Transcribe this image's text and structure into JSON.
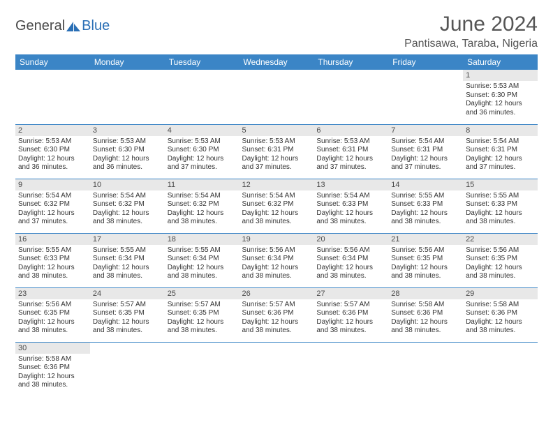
{
  "logo": {
    "part1": "General",
    "part2": "Blue"
  },
  "title": "June 2024",
  "location": "Pantisawa, Taraba, Nigeria",
  "colors": {
    "header_bg": "#3b85c6",
    "header_fg": "#ffffff",
    "daynum_bg": "#e8e8e8",
    "border": "#3b85c6",
    "logo_blue": "#2a6fb5",
    "logo_gray": "#4a4a4a"
  },
  "weekdays": [
    "Sunday",
    "Monday",
    "Tuesday",
    "Wednesday",
    "Thursday",
    "Friday",
    "Saturday"
  ],
  "weeks": [
    [
      null,
      null,
      null,
      null,
      null,
      null,
      {
        "n": "1",
        "sr": "Sunrise: 5:53 AM",
        "ss": "Sunset: 6:30 PM",
        "d1": "Daylight: 12 hours",
        "d2": "and 36 minutes."
      }
    ],
    [
      {
        "n": "2",
        "sr": "Sunrise: 5:53 AM",
        "ss": "Sunset: 6:30 PM",
        "d1": "Daylight: 12 hours",
        "d2": "and 36 minutes."
      },
      {
        "n": "3",
        "sr": "Sunrise: 5:53 AM",
        "ss": "Sunset: 6:30 PM",
        "d1": "Daylight: 12 hours",
        "d2": "and 36 minutes."
      },
      {
        "n": "4",
        "sr": "Sunrise: 5:53 AM",
        "ss": "Sunset: 6:30 PM",
        "d1": "Daylight: 12 hours",
        "d2": "and 37 minutes."
      },
      {
        "n": "5",
        "sr": "Sunrise: 5:53 AM",
        "ss": "Sunset: 6:31 PM",
        "d1": "Daylight: 12 hours",
        "d2": "and 37 minutes."
      },
      {
        "n": "6",
        "sr": "Sunrise: 5:53 AM",
        "ss": "Sunset: 6:31 PM",
        "d1": "Daylight: 12 hours",
        "d2": "and 37 minutes."
      },
      {
        "n": "7",
        "sr": "Sunrise: 5:54 AM",
        "ss": "Sunset: 6:31 PM",
        "d1": "Daylight: 12 hours",
        "d2": "and 37 minutes."
      },
      {
        "n": "8",
        "sr": "Sunrise: 5:54 AM",
        "ss": "Sunset: 6:31 PM",
        "d1": "Daylight: 12 hours",
        "d2": "and 37 minutes."
      }
    ],
    [
      {
        "n": "9",
        "sr": "Sunrise: 5:54 AM",
        "ss": "Sunset: 6:32 PM",
        "d1": "Daylight: 12 hours",
        "d2": "and 37 minutes."
      },
      {
        "n": "10",
        "sr": "Sunrise: 5:54 AM",
        "ss": "Sunset: 6:32 PM",
        "d1": "Daylight: 12 hours",
        "d2": "and 38 minutes."
      },
      {
        "n": "11",
        "sr": "Sunrise: 5:54 AM",
        "ss": "Sunset: 6:32 PM",
        "d1": "Daylight: 12 hours",
        "d2": "and 38 minutes."
      },
      {
        "n": "12",
        "sr": "Sunrise: 5:54 AM",
        "ss": "Sunset: 6:32 PM",
        "d1": "Daylight: 12 hours",
        "d2": "and 38 minutes."
      },
      {
        "n": "13",
        "sr": "Sunrise: 5:54 AM",
        "ss": "Sunset: 6:33 PM",
        "d1": "Daylight: 12 hours",
        "d2": "and 38 minutes."
      },
      {
        "n": "14",
        "sr": "Sunrise: 5:55 AM",
        "ss": "Sunset: 6:33 PM",
        "d1": "Daylight: 12 hours",
        "d2": "and 38 minutes."
      },
      {
        "n": "15",
        "sr": "Sunrise: 5:55 AM",
        "ss": "Sunset: 6:33 PM",
        "d1": "Daylight: 12 hours",
        "d2": "and 38 minutes."
      }
    ],
    [
      {
        "n": "16",
        "sr": "Sunrise: 5:55 AM",
        "ss": "Sunset: 6:33 PM",
        "d1": "Daylight: 12 hours",
        "d2": "and 38 minutes."
      },
      {
        "n": "17",
        "sr": "Sunrise: 5:55 AM",
        "ss": "Sunset: 6:34 PM",
        "d1": "Daylight: 12 hours",
        "d2": "and 38 minutes."
      },
      {
        "n": "18",
        "sr": "Sunrise: 5:55 AM",
        "ss": "Sunset: 6:34 PM",
        "d1": "Daylight: 12 hours",
        "d2": "and 38 minutes."
      },
      {
        "n": "19",
        "sr": "Sunrise: 5:56 AM",
        "ss": "Sunset: 6:34 PM",
        "d1": "Daylight: 12 hours",
        "d2": "and 38 minutes."
      },
      {
        "n": "20",
        "sr": "Sunrise: 5:56 AM",
        "ss": "Sunset: 6:34 PM",
        "d1": "Daylight: 12 hours",
        "d2": "and 38 minutes."
      },
      {
        "n": "21",
        "sr": "Sunrise: 5:56 AM",
        "ss": "Sunset: 6:35 PM",
        "d1": "Daylight: 12 hours",
        "d2": "and 38 minutes."
      },
      {
        "n": "22",
        "sr": "Sunrise: 5:56 AM",
        "ss": "Sunset: 6:35 PM",
        "d1": "Daylight: 12 hours",
        "d2": "and 38 minutes."
      }
    ],
    [
      {
        "n": "23",
        "sr": "Sunrise: 5:56 AM",
        "ss": "Sunset: 6:35 PM",
        "d1": "Daylight: 12 hours",
        "d2": "and 38 minutes."
      },
      {
        "n": "24",
        "sr": "Sunrise: 5:57 AM",
        "ss": "Sunset: 6:35 PM",
        "d1": "Daylight: 12 hours",
        "d2": "and 38 minutes."
      },
      {
        "n": "25",
        "sr": "Sunrise: 5:57 AM",
        "ss": "Sunset: 6:35 PM",
        "d1": "Daylight: 12 hours",
        "d2": "and 38 minutes."
      },
      {
        "n": "26",
        "sr": "Sunrise: 5:57 AM",
        "ss": "Sunset: 6:36 PM",
        "d1": "Daylight: 12 hours",
        "d2": "and 38 minutes."
      },
      {
        "n": "27",
        "sr": "Sunrise: 5:57 AM",
        "ss": "Sunset: 6:36 PM",
        "d1": "Daylight: 12 hours",
        "d2": "and 38 minutes."
      },
      {
        "n": "28",
        "sr": "Sunrise: 5:58 AM",
        "ss": "Sunset: 6:36 PM",
        "d1": "Daylight: 12 hours",
        "d2": "and 38 minutes."
      },
      {
        "n": "29",
        "sr": "Sunrise: 5:58 AM",
        "ss": "Sunset: 6:36 PM",
        "d1": "Daylight: 12 hours",
        "d2": "and 38 minutes."
      }
    ],
    [
      {
        "n": "30",
        "sr": "Sunrise: 5:58 AM",
        "ss": "Sunset: 6:36 PM",
        "d1": "Daylight: 12 hours",
        "d2": "and 38 minutes."
      },
      null,
      null,
      null,
      null,
      null,
      null
    ]
  ]
}
